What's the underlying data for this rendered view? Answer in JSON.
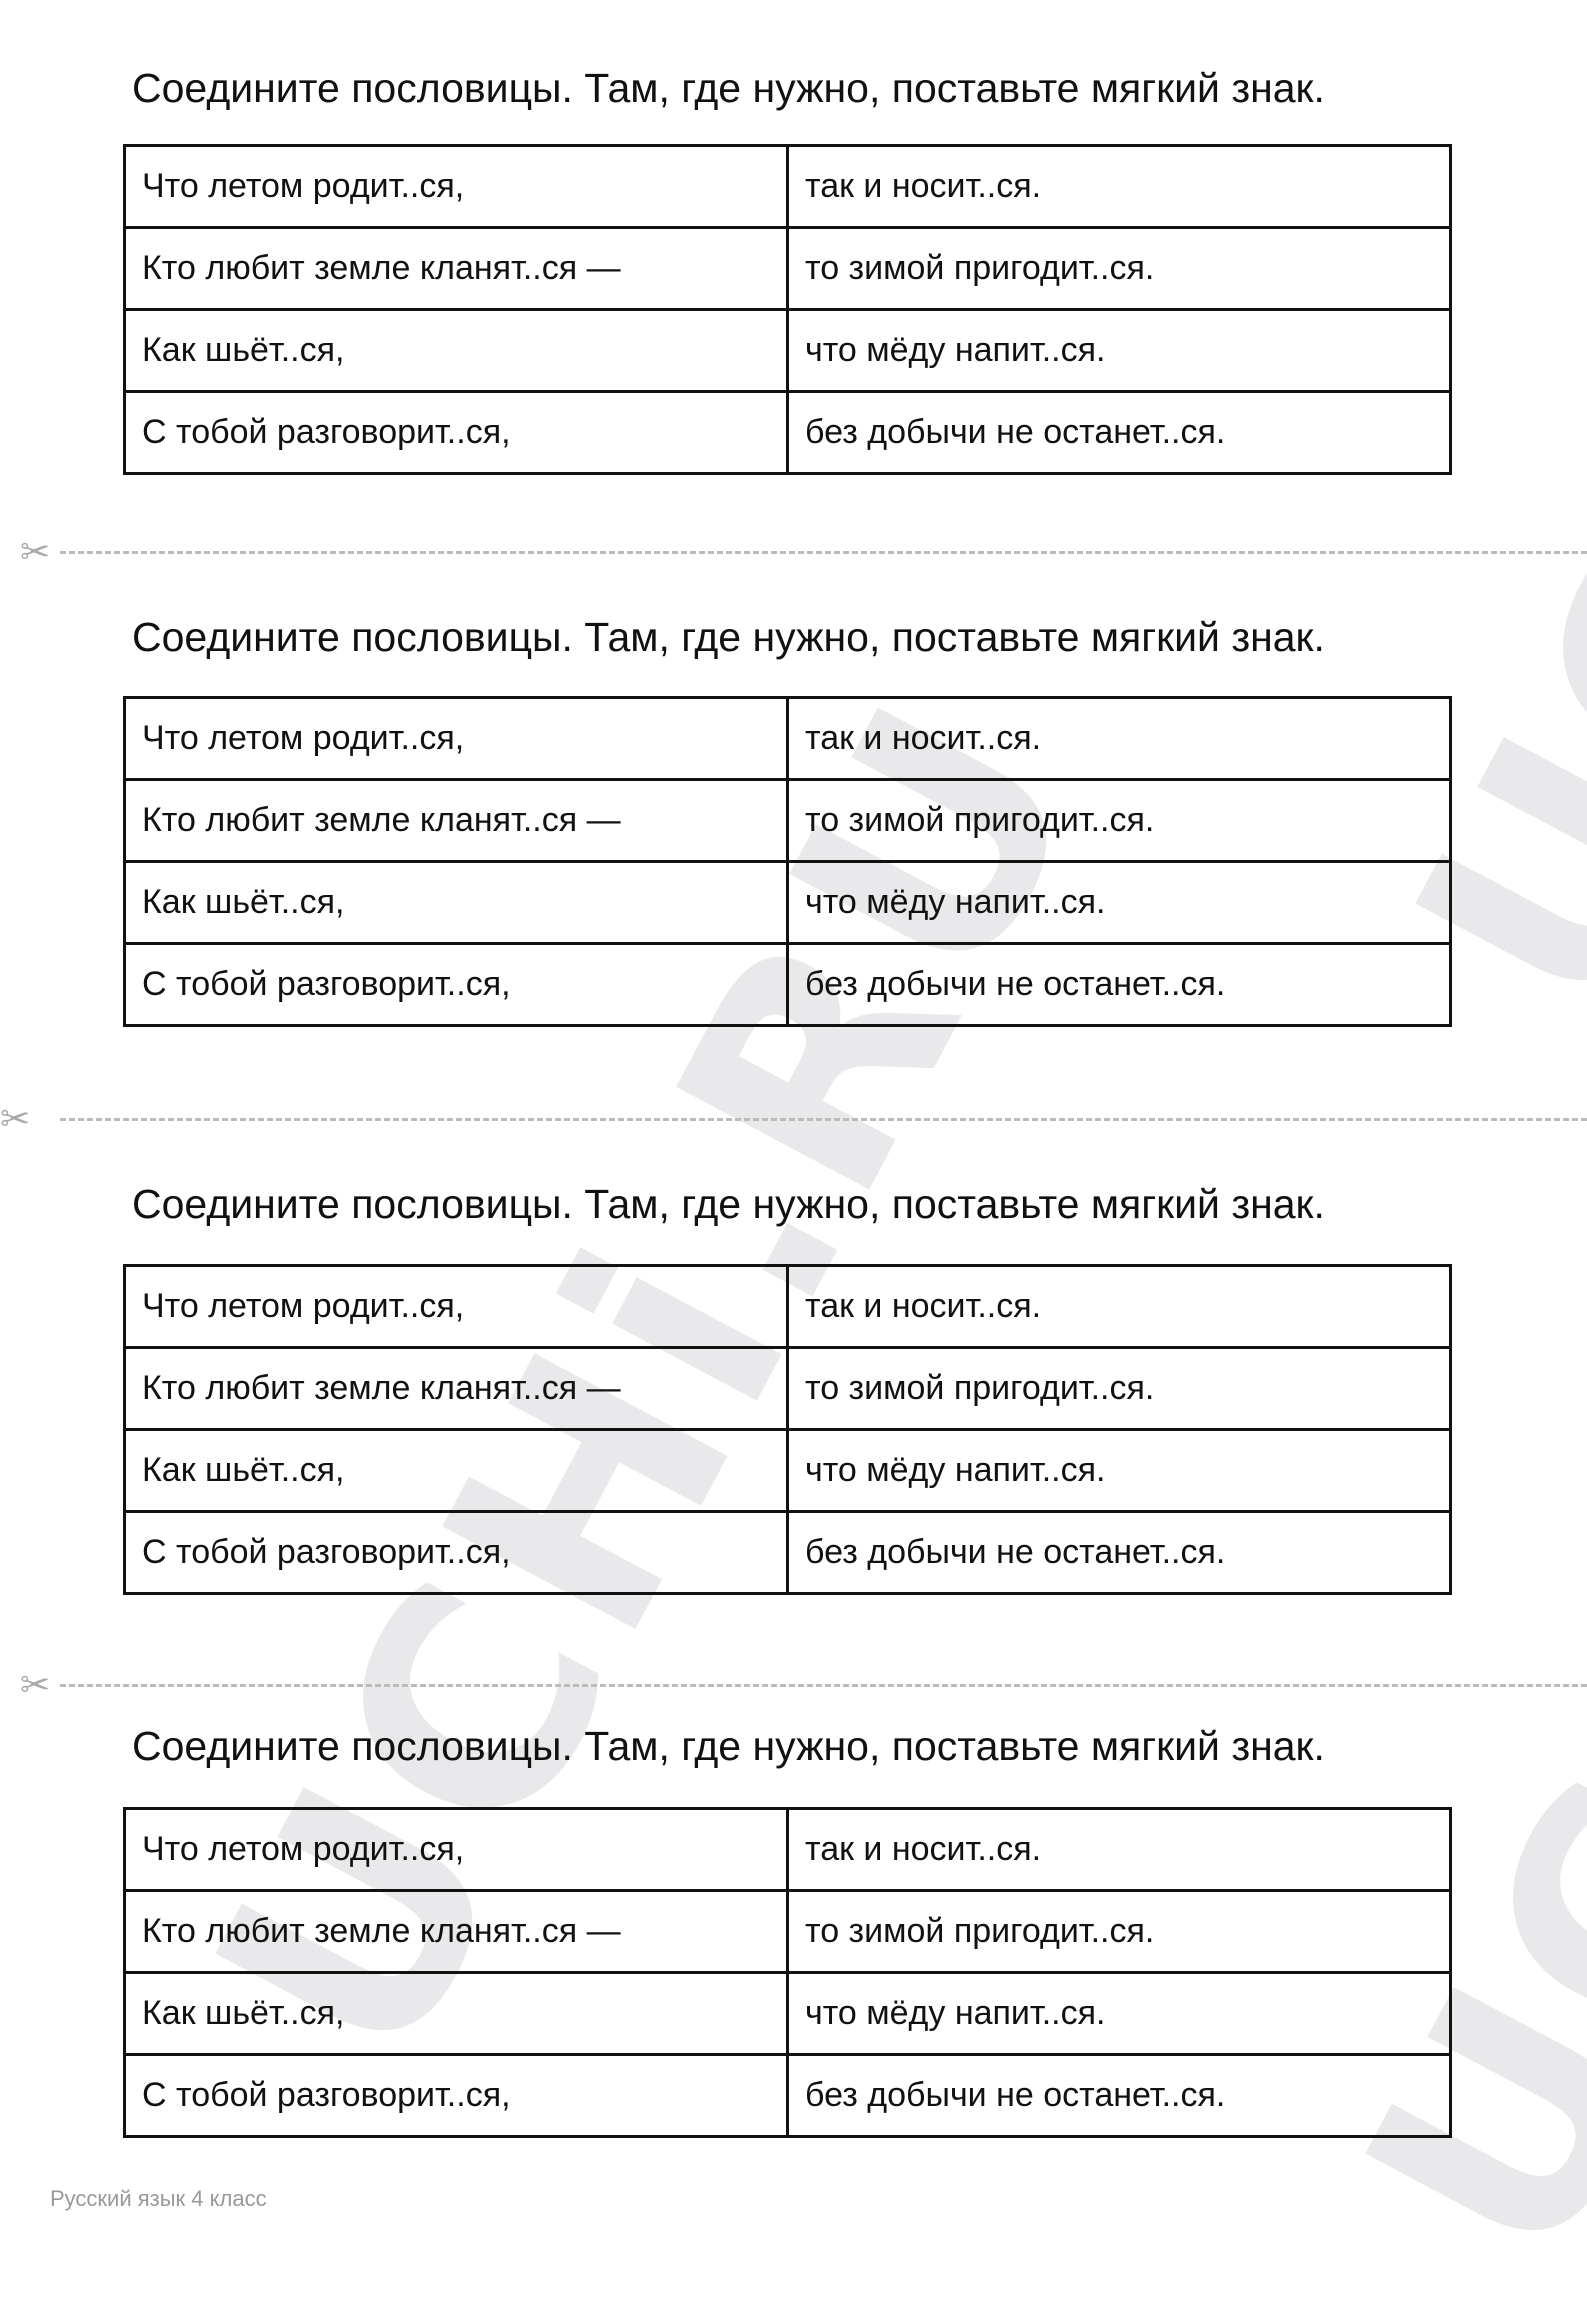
{
  "watermark": "UCHi.RU",
  "blocks": [
    {
      "title": "Соедините пословицы. Там, где нужно, поставьте мягкий знак.",
      "rows": [
        [
          "Что летом родит..ся,",
          "так и носит..ся."
        ],
        [
          "Кто любит земле кланят..ся —",
          "то зимой пригодит..ся."
        ],
        [
          "Как шьёт..ся,",
          "что мёду напит..ся."
        ],
        [
          "С тобой разговорит..ся,",
          "без добычи не останет..ся."
        ]
      ]
    },
    {
      "title": "Соедините пословицы. Там, где нужно, поставьте мягкий знак.",
      "rows": [
        [
          "Что летом родит..ся,",
          "так и носит..ся."
        ],
        [
          "Кто любит земле кланят..ся —",
          "то зимой пригодит..ся."
        ],
        [
          "Как шьёт..ся,",
          "что мёду напит..ся."
        ],
        [
          "С тобой разговорит..ся,",
          "без добычи не останет..ся."
        ]
      ]
    },
    {
      "title": "Соедините пословицы. Там, где нужно, поставьте мягкий знак.",
      "rows": [
        [
          "Что летом родит..ся,",
          "так и носит..ся."
        ],
        [
          "Кто любит земле кланят..ся —",
          "то зимой пригодит..ся."
        ],
        [
          "Как шьёт..ся,",
          "что мёду напит..ся."
        ],
        [
          "С тобой разговорит..ся,",
          "без добычи не останет..ся."
        ]
      ]
    },
    {
      "title": "Соедините пословицы. Там, где нужно, поставьте мягкий знак.",
      "rows": [
        [
          "Что летом родит..ся,",
          "так и носит..ся."
        ],
        [
          "Кто любит земле кланят..ся —",
          "то зимой пригодит..ся."
        ],
        [
          "Как шьёт..ся,",
          "что мёду напит..ся."
        ],
        [
          "С тобой разговорит..ся,",
          "без добычи не останет..ся."
        ]
      ]
    }
  ],
  "cut_icon": "scissors-icon",
  "footer": "Русский язык 4 класс"
}
